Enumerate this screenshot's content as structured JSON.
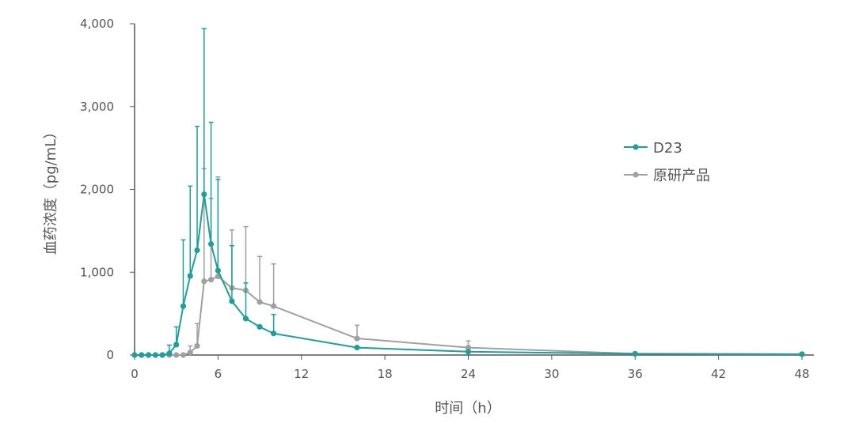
{
  "chart_data": {
    "type": "line",
    "xlabel": "时间（h）",
    "ylabel": "血药浓度（pg/mL）",
    "xlim": [
      0,
      48
    ],
    "ylim": [
      0,
      4000
    ],
    "xticks": [
      0,
      6,
      12,
      18,
      24,
      30,
      36,
      42,
      48
    ],
    "xtick_labels": [
      "0",
      "6",
      "12",
      "18",
      "24",
      "30",
      "36",
      "42",
      "48"
    ],
    "yticks": [
      0,
      1000,
      2000,
      3000,
      4000
    ],
    "ytick_labels": [
      "0",
      "1,000",
      "2,000",
      "3,000",
      "4,000"
    ],
    "grid": false,
    "legend_position": "right",
    "x": [
      0,
      0.5,
      1,
      1.5,
      2,
      2.5,
      3,
      3.5,
      4,
      4.5,
      5,
      5.5,
      6,
      7,
      8,
      9,
      10,
      16,
      24,
      36,
      48
    ],
    "series": [
      {
        "name": "D23",
        "color": "#1f9e9a",
        "values": [
          0,
          0,
          0,
          0,
          0,
          20,
          125,
          590,
          955,
          1265,
          1940,
          1340,
          1020,
          650,
          440,
          340,
          260,
          90,
          40,
          15,
          10
        ],
        "error_upper": [
          0,
          0,
          0,
          0,
          0,
          120,
          340,
          1390,
          2040,
          2760,
          3940,
          2810,
          2120,
          1320,
          870,
          0,
          490,
          0,
          0,
          0,
          0
        ]
      },
      {
        "name": "原研产品",
        "color": "#a0a0a0",
        "values": [
          0,
          0,
          0,
          0,
          0,
          0,
          0,
          0,
          30,
          110,
          890,
          910,
          950,
          810,
          780,
          640,
          590,
          200,
          90,
          15,
          10
        ],
        "error_upper": [
          0,
          0,
          0,
          0,
          0,
          0,
          0,
          0,
          110,
          380,
          2250,
          1890,
          2150,
          1510,
          1550,
          1190,
          1100,
          360,
          170,
          0,
          0
        ]
      }
    ]
  }
}
